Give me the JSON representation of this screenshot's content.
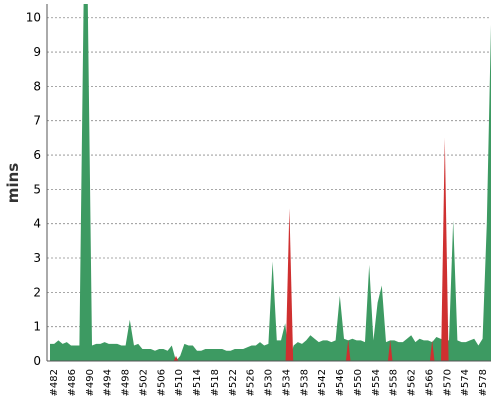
{
  "chart_data": {
    "type": "area",
    "ylabel": "mins",
    "ylim": [
      0,
      10.4
    ],
    "y_ticks": [
      0,
      1,
      2,
      3,
      4,
      5,
      6,
      7,
      8,
      9,
      10
    ],
    "x_tick_labels": [
      "#482",
      "#486",
      "#490",
      "#494",
      "#498",
      "#502",
      "#506",
      "#510",
      "#514",
      "#518",
      "#522",
      "#526",
      "#530",
      "#534",
      "#538",
      "#542",
      "#546",
      "#550",
      "#554",
      "#558",
      "#562",
      "#566",
      "#570",
      "#574",
      "#578"
    ],
    "grid": "horizontal-dashed",
    "series": [
      {
        "status": "pass",
        "color": "#3d9a62",
        "values": [
          0.5,
          0.5,
          0.6,
          0.5,
          0.55,
          0.45,
          0.45,
          0.45,
          10.4,
          10.4,
          0.45,
          0.5,
          0.5,
          0.55,
          0.5,
          0.5,
          0.5,
          0.45,
          0.45,
          1.2,
          0.45,
          0.5,
          0.35,
          0.35,
          0.35,
          0.3,
          0.35,
          0.35,
          0.3,
          0.45,
          0,
          0.15,
          0.5,
          0.45,
          0.45,
          0.3,
          0.3,
          0.35,
          0.35,
          0.35,
          0.35,
          0.35,
          0.3,
          0.3,
          0.35,
          0.35,
          0.35,
          0.4,
          0.45,
          0.45,
          0.55,
          0.45,
          0.5,
          2.9,
          0.6,
          0.6,
          1.1,
          0,
          0.45,
          0.55,
          0.5,
          0.6,
          0.75,
          0.65,
          0.55,
          0.6,
          0.6,
          0.55,
          0.6,
          1.9,
          0.65,
          0.6,
          0.65,
          0.6,
          0.6,
          0.55,
          2.8,
          0.6,
          1.7,
          2.2,
          0.55,
          0.6,
          0.6,
          0.55,
          0.55,
          0.65,
          0.75,
          0.55,
          0.65,
          0.6,
          0.6,
          0.55,
          0.7,
          0.65,
          0.6,
          0.6,
          4.1,
          0.6,
          0.55,
          0.55,
          0.6,
          0.65,
          0.45,
          0.65,
          4,
          9.8
        ]
      }
    ],
    "failures": [
      {
        "index": 30,
        "value": 0.15
      },
      {
        "index": 57,
        "value": 4.45
      },
      {
        "index": 71,
        "value": 0.62
      },
      {
        "index": 81,
        "value": 0.6
      },
      {
        "index": 91,
        "value": 0.6
      },
      {
        "index": 94,
        "value": 6.5
      }
    ]
  }
}
